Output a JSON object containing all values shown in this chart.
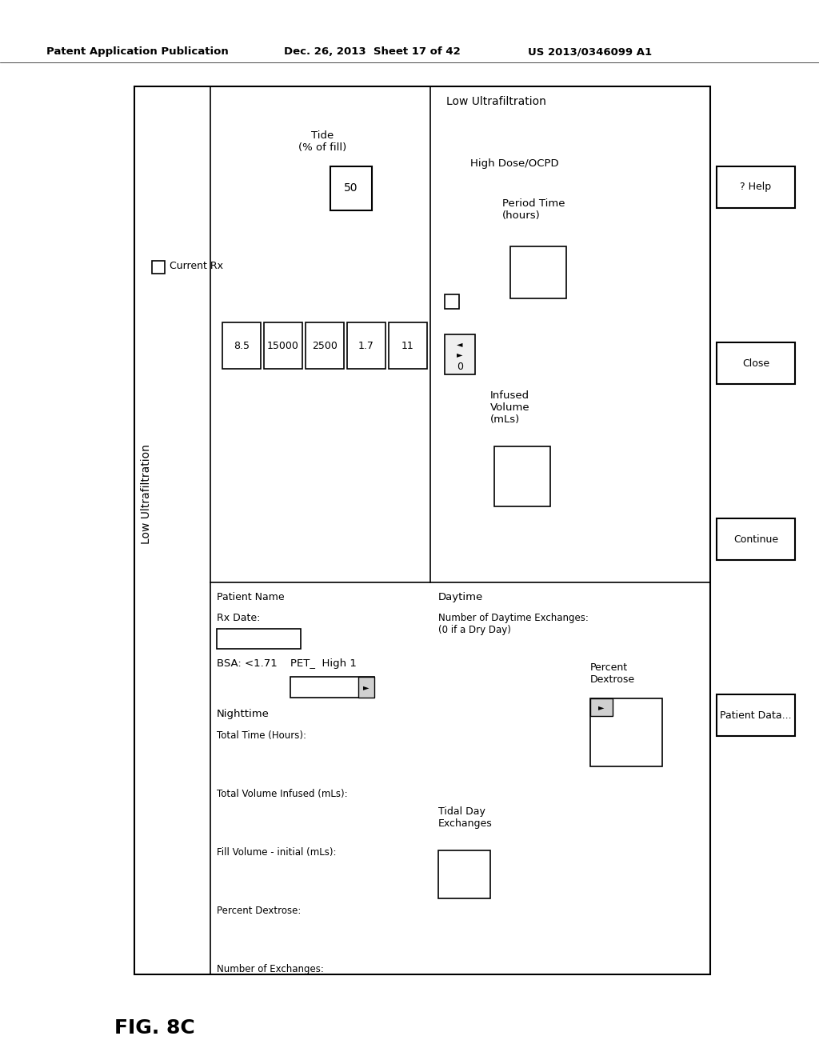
{
  "page_header_left": "Patent Application Publication",
  "page_header_mid": "Dec. 26, 2013  Sheet 17 of 42",
  "page_header_right": "US 2013/0346099 A1",
  "fig_label": "FIG. 8C",
  "title": "Low Ultrafiltration",
  "current_rx_label": "Current Rx",
  "tide_label": "Tide\n(% of fill)",
  "tide_value": "50",
  "patient_name_label": "Patient Name",
  "rx_date_label": "Rx Date:",
  "nighttime_label": "Nighttime",
  "bsa_label": "BSA: <1.71",
  "pet_label": "PET_  High 1",
  "total_time_label": "Total Time (Hours):",
  "total_vol_infused_label": "Total Volume Infused (mLs):",
  "fill_vol_initial_label": "Fill Volume - initial (mLs):",
  "pct_dextrose_label": "Percent Dextrose:",
  "num_exchanges_label": "Number of Exchanges:",
  "nighttime_values": [
    "8.5",
    "15000",
    "2500",
    "1.7",
    "11"
  ],
  "high_dose_label": "High Dose/OCPD",
  "period_time_label": "Period Time\n(hours)",
  "infused_volume_label": "Infused\nVolume\n(mLs)",
  "daytime_label": "Daytime",
  "daytime_exchanges_label": "Number of Daytime Exchanges:\n(0 if a Dry Day)",
  "percent_dextrose_day_label": "Percent\nDextrose",
  "tidal_day_exchanges_label": "Tidal Day\nExchanges",
  "zero_label": "0",
  "help_label": "? Help",
  "close_label": "Close",
  "continue_label": "Continue",
  "patient_data_label": "Patient Data...",
  "bg_color": "#ffffff",
  "border_color": "#000000",
  "text_color": "#000000"
}
